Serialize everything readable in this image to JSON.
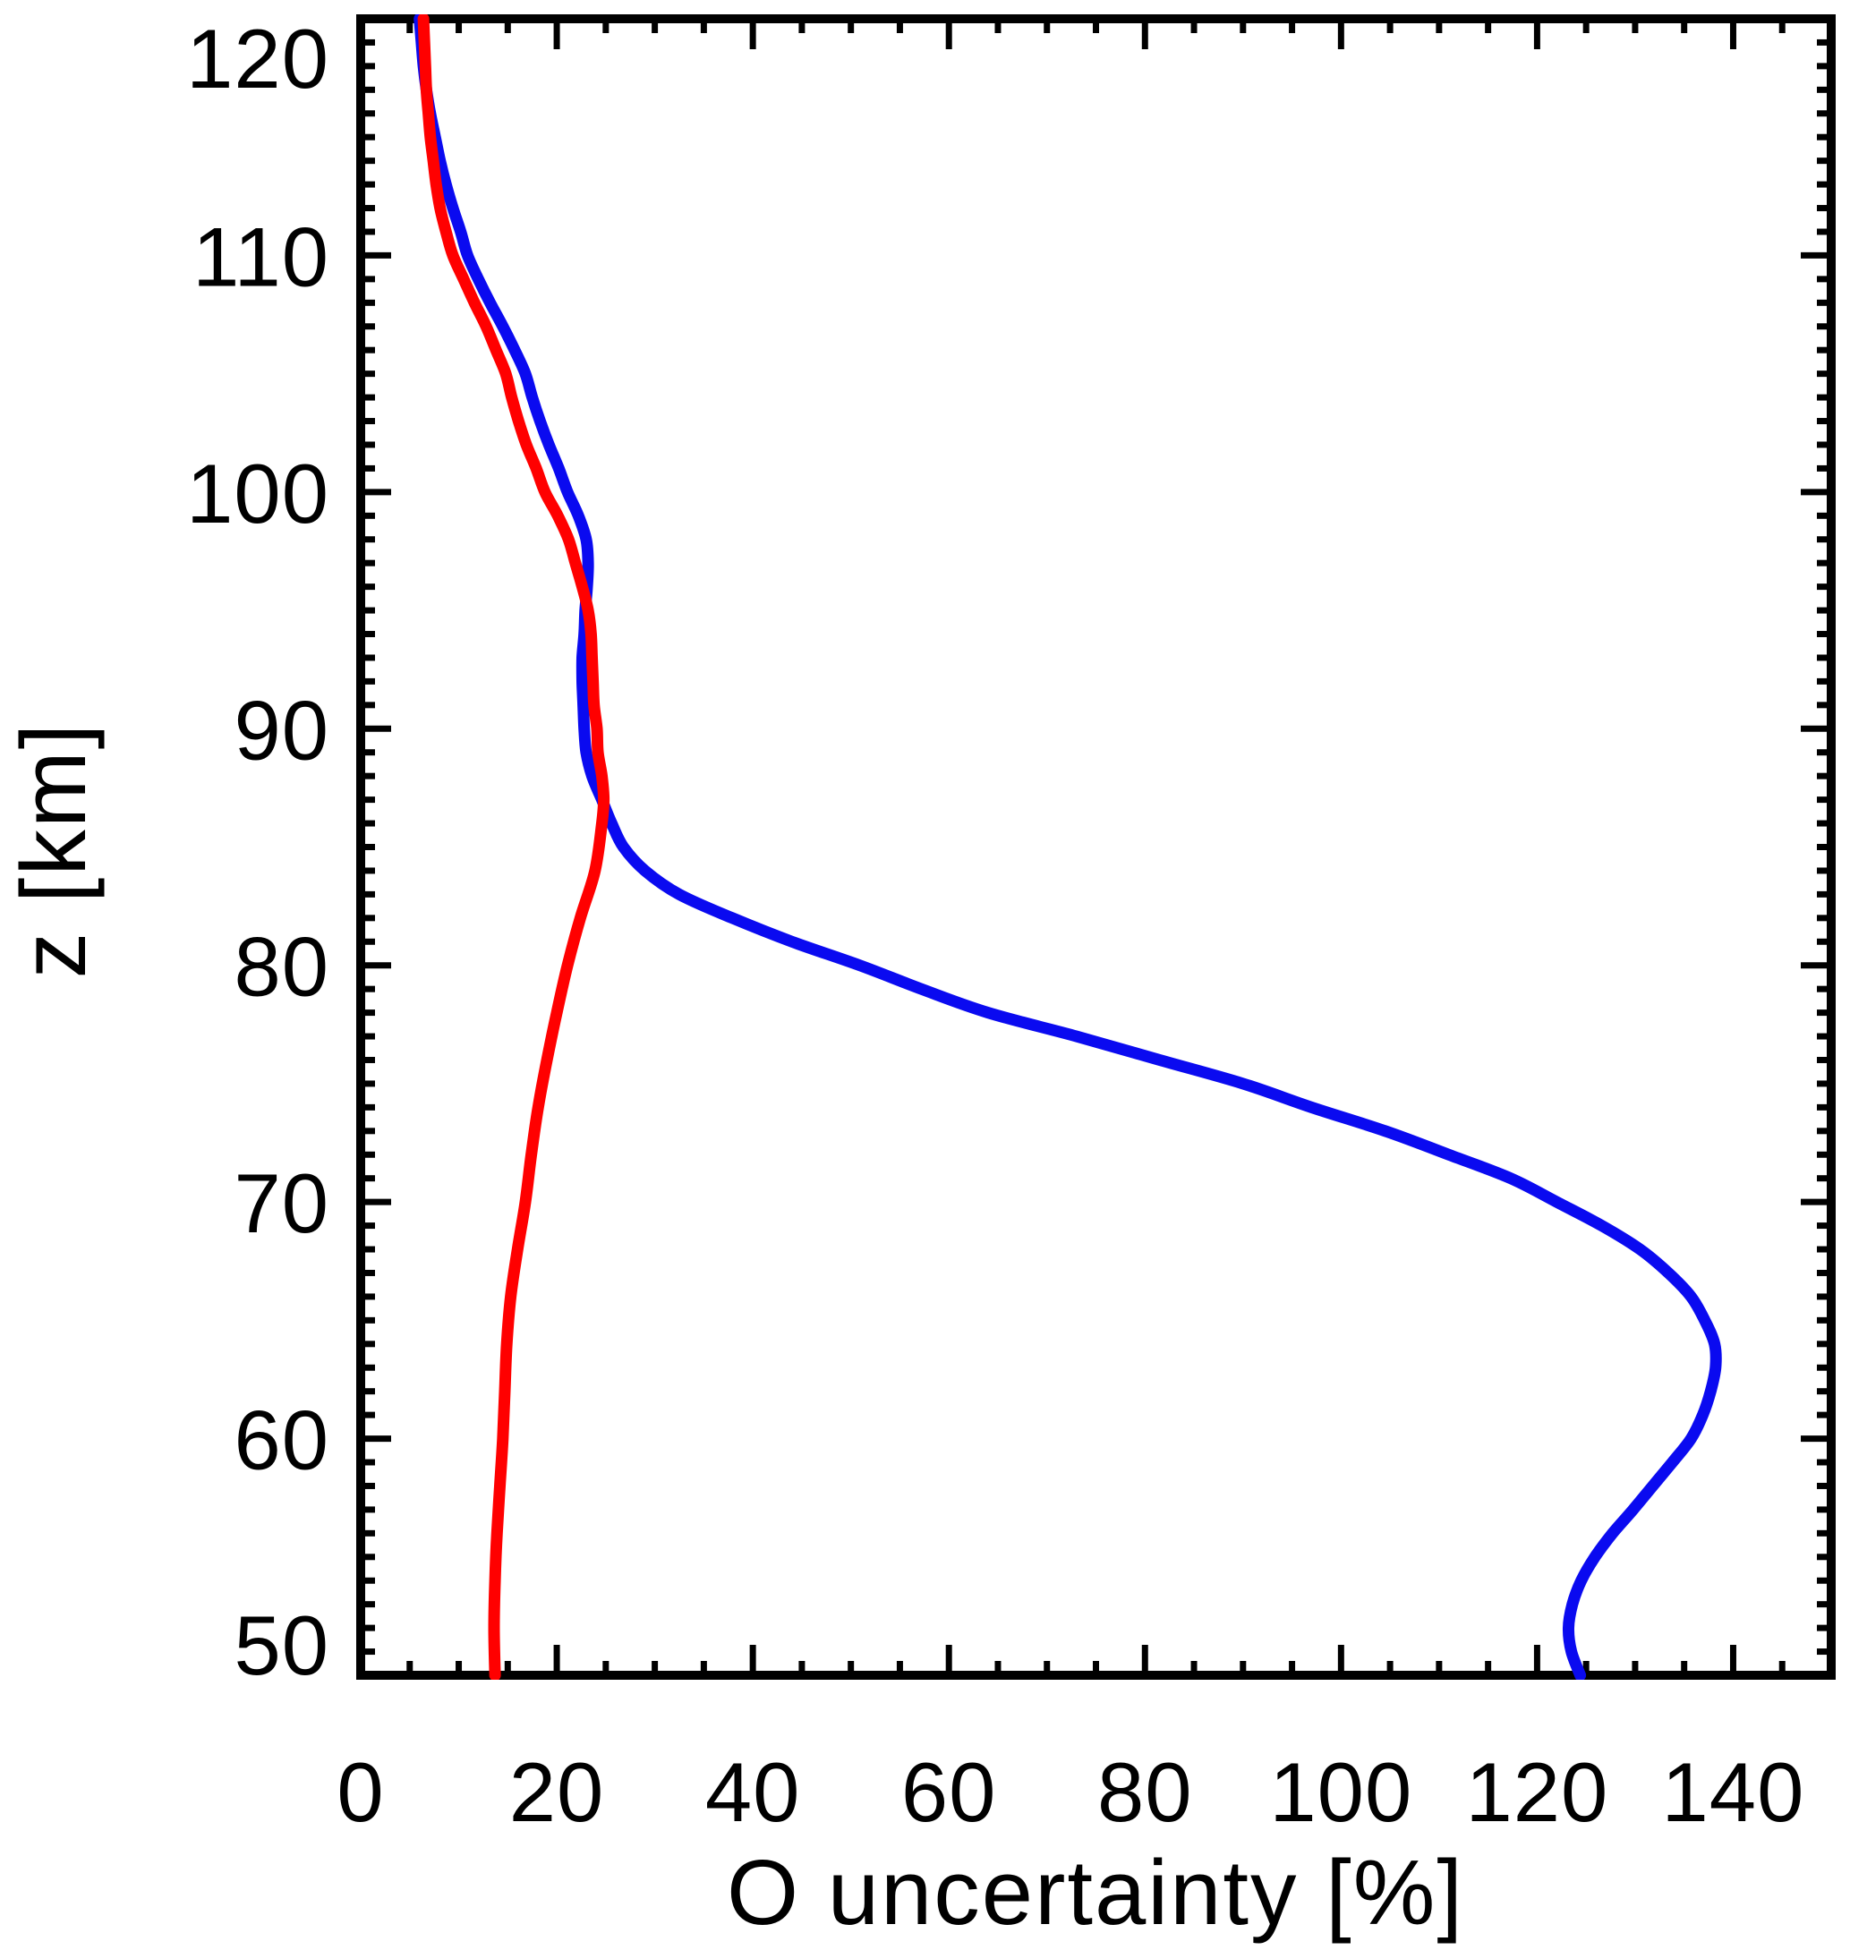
{
  "figure": {
    "background": "#ffffff",
    "frame_color": "#000000"
  },
  "chart_data": {
    "type": "line",
    "title": "",
    "xlabel": "O uncertainty [%]",
    "ylabel": "z [km]",
    "xlim": [
      0,
      150
    ],
    "ylim": [
      50,
      120
    ],
    "grid": false,
    "legend": "none",
    "x_major_ticks": [
      0,
      20,
      40,
      60,
      80,
      100,
      120,
      140
    ],
    "x_tick_labels": [
      "0",
      "20",
      "40",
      "60",
      "80",
      "100",
      "120",
      "140"
    ],
    "x_minor_step": 5,
    "y_major_ticks": [
      50,
      60,
      70,
      80,
      90,
      100,
      110,
      120
    ],
    "y_tick_labels": [
      "50",
      "60",
      "70",
      "80",
      "90",
      "100",
      "110",
      "120"
    ],
    "y_minor_step": 1,
    "series": [
      {
        "name": "red",
        "color": "#ff0000",
        "line_width": 13,
        "points_uncertainty_vs_z": [
          [
            13.7,
            50
          ],
          [
            13.6,
            52
          ],
          [
            13.7,
            54
          ],
          [
            13.9,
            56
          ],
          [
            14.2,
            58
          ],
          [
            14.5,
            60
          ],
          [
            14.7,
            62
          ],
          [
            14.9,
            64
          ],
          [
            15.3,
            66
          ],
          [
            16.0,
            68
          ],
          [
            16.8,
            70
          ],
          [
            17.4,
            72
          ],
          [
            18.1,
            74
          ],
          [
            19.0,
            76
          ],
          [
            20.0,
            78
          ],
          [
            21.1,
            80
          ],
          [
            22.4,
            82
          ],
          [
            23.9,
            84
          ],
          [
            24.6,
            86
          ],
          [
            24.8,
            87
          ],
          [
            24.6,
            88
          ],
          [
            24.2,
            89
          ],
          [
            24.1,
            90
          ],
          [
            23.8,
            91
          ],
          [
            23.7,
            92
          ],
          [
            23.6,
            93
          ],
          [
            23.5,
            94
          ],
          [
            23.2,
            95
          ],
          [
            22.6,
            96
          ],
          [
            21.9,
            97
          ],
          [
            21.2,
            98
          ],
          [
            20.1,
            99
          ],
          [
            18.8,
            100
          ],
          [
            17.9,
            101
          ],
          [
            16.9,
            102
          ],
          [
            16.1,
            103
          ],
          [
            15.4,
            104
          ],
          [
            14.8,
            105
          ],
          [
            13.8,
            106
          ],
          [
            12.8,
            107
          ],
          [
            11.6,
            108
          ],
          [
            10.5,
            109
          ],
          [
            9.4,
            110
          ],
          [
            8.7,
            111
          ],
          [
            8.1,
            112
          ],
          [
            7.7,
            113
          ],
          [
            7.4,
            114
          ],
          [
            7.1,
            115
          ],
          [
            6.9,
            116
          ],
          [
            6.7,
            117
          ],
          [
            6.6,
            118
          ],
          [
            6.5,
            119
          ],
          [
            6.4,
            120
          ]
        ]
      },
      {
        "name": "blue",
        "color": "#0a0af0",
        "line_width": 13,
        "points_uncertainty_vs_z": [
          [
            124.4,
            50
          ],
          [
            123.5,
            51
          ],
          [
            123.2,
            52
          ],
          [
            123.6,
            53
          ],
          [
            124.5,
            54
          ],
          [
            125.9,
            55
          ],
          [
            127.7,
            56
          ],
          [
            129.8,
            57
          ],
          [
            131.8,
            58
          ],
          [
            133.8,
            59
          ],
          [
            135.7,
            60
          ],
          [
            136.9,
            61
          ],
          [
            137.7,
            62
          ],
          [
            138.2,
            63
          ],
          [
            138.1,
            64
          ],
          [
            137.1,
            65
          ],
          [
            135.7,
            66
          ],
          [
            133.4,
            67
          ],
          [
            130.5,
            68
          ],
          [
            126.6,
            69
          ],
          [
            122.0,
            70
          ],
          [
            117.3,
            71
          ],
          [
            111.0,
            72
          ],
          [
            104.5,
            73
          ],
          [
            97.0,
            74
          ],
          [
            90.0,
            75
          ],
          [
            81.5,
            76
          ],
          [
            73.0,
            77
          ],
          [
            64.0,
            78
          ],
          [
            57.2,
            79
          ],
          [
            50.9,
            80
          ],
          [
            44.0,
            81
          ],
          [
            37.9,
            82
          ],
          [
            32.5,
            83
          ],
          [
            29.0,
            84
          ],
          [
            26.8,
            85
          ],
          [
            25.6,
            86
          ],
          [
            24.6,
            87
          ],
          [
            23.6,
            88
          ],
          [
            23.0,
            89
          ],
          [
            22.8,
            90
          ],
          [
            22.7,
            91
          ],
          [
            22.6,
            92
          ],
          [
            22.6,
            93
          ],
          [
            22.8,
            94
          ],
          [
            22.9,
            95
          ],
          [
            23.1,
            96
          ],
          [
            23.2,
            97
          ],
          [
            23.0,
            98
          ],
          [
            22.2,
            99
          ],
          [
            21.1,
            100
          ],
          [
            20.2,
            101
          ],
          [
            19.2,
            102
          ],
          [
            18.3,
            103
          ],
          [
            17.5,
            104
          ],
          [
            16.8,
            105
          ],
          [
            15.7,
            106
          ],
          [
            14.5,
            107
          ],
          [
            13.2,
            108
          ],
          [
            12.0,
            109
          ],
          [
            10.9,
            110
          ],
          [
            10.2,
            111
          ],
          [
            9.4,
            112
          ],
          [
            8.7,
            113
          ],
          [
            8.1,
            114
          ],
          [
            7.6,
            115
          ],
          [
            7.1,
            116
          ],
          [
            6.7,
            117
          ],
          [
            6.4,
            118
          ],
          [
            6.2,
            119
          ],
          [
            6.0,
            120
          ]
        ]
      }
    ]
  }
}
